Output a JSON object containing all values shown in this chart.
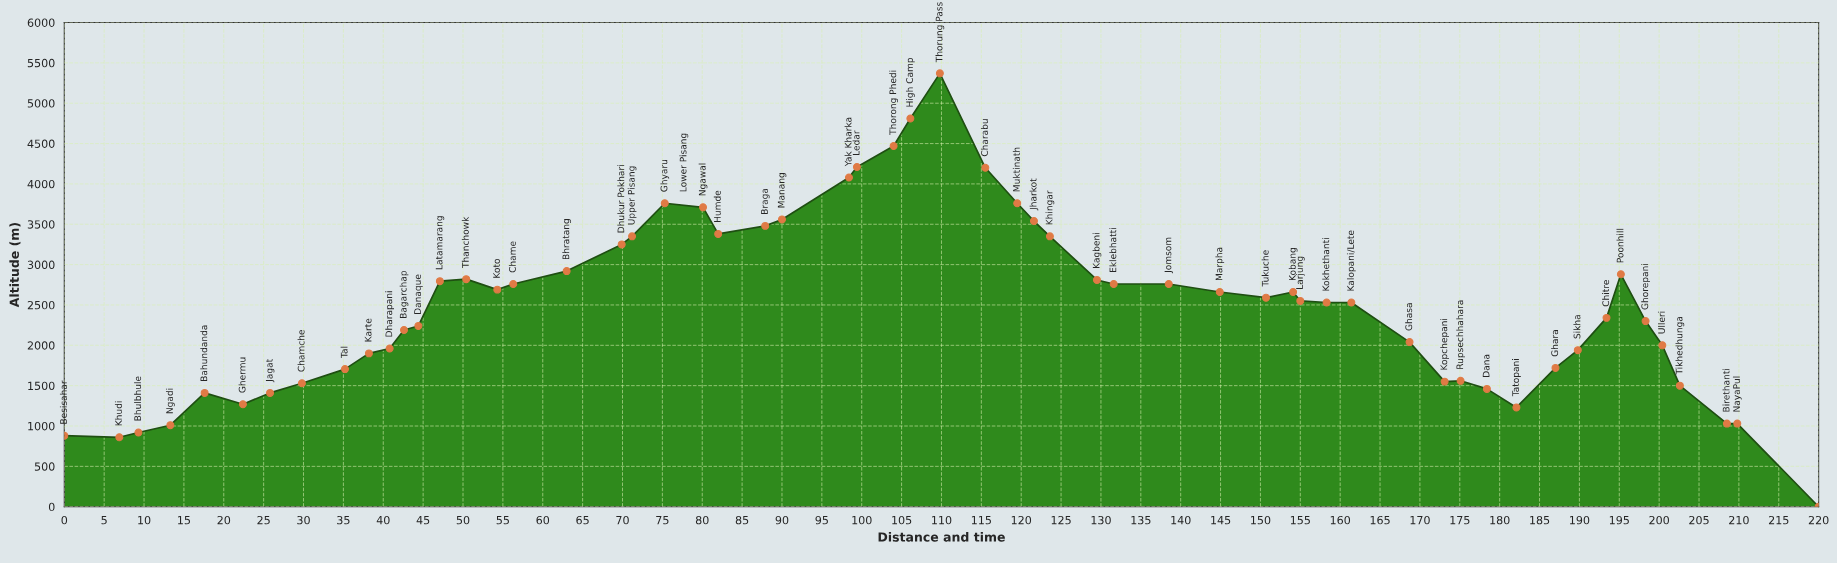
{
  "chart_data": {
    "type": "area",
    "xlabel": "Distance and time",
    "ylabel": "Altitude (m)",
    "x": [
      0,
      6.9,
      9.3,
      13.3,
      17.6,
      22.4,
      25.8,
      29.8,
      35.2,
      38.2,
      40.8,
      42.6,
      44.4,
      47.1,
      50.4,
      54.3,
      56.3,
      63,
      69.9,
      71.2,
      75.3,
      80.1,
      82,
      87.9,
      90,
      98.4,
      99.4,
      104,
      106.1,
      109.8,
      115.5,
      119.5,
      121.6,
      123.6,
      129.5,
      131.6,
      138.5,
      144.9,
      150.7,
      154.1,
      155,
      158.3,
      161.4,
      168.7,
      173.1,
      175.1,
      178.4,
      182.1,
      187,
      189.8,
      193.4,
      195.2,
      198.3,
      200.4,
      202.6,
      208.5,
      209.8,
      220
    ],
    "series": [
      {
        "color": "#2f8a1c",
        "values": [
          880,
          860,
          920,
          1010,
          1410,
          1270,
          1410,
          1530,
          1705,
          1900,
          1960,
          2190,
          2240,
          2795,
          2820,
          2690,
          2760,
          2920,
          3250,
          3350,
          3760,
          3710,
          3380,
          3480,
          3560,
          4080,
          4210,
          4470,
          4810,
          5370,
          4200,
          3760,
          3540,
          3350,
          2810,
          2760,
          2760,
          2660,
          2590,
          2660,
          2550,
          2530,
          2530,
          2040,
          1550,
          1560,
          1460,
          1230,
          1720,
          1940,
          2340,
          2880,
          2300,
          2000,
          1500,
          1030,
          1030,
          0
        ]
      }
    ],
    "marker": "circle",
    "xlim": [
      0,
      220
    ],
    "xticks": [
      0,
      5,
      10,
      15,
      20,
      25,
      30,
      35,
      40,
      45,
      50,
      55,
      60,
      65,
      70,
      75,
      80,
      85,
      90,
      95,
      100,
      105,
      110,
      115,
      120,
      125,
      130,
      135,
      140,
      145,
      150,
      155,
      160,
      165,
      170,
      175,
      180,
      185,
      190,
      195,
      200,
      205,
      210,
      215,
      220
    ],
    "ylim": [
      0,
      6000
    ],
    "yticks": [
      0,
      500,
      1000,
      1500,
      2000,
      2500,
      3000,
      3500,
      4000,
      4500,
      5000,
      5500,
      6000
    ],
    "grid": true,
    "annotations": [
      {
        "text": "Besisahar",
        "x": 0,
        "y": 880
      },
      {
        "text": "Khudi",
        "x": 6.9,
        "y": 860
      },
      {
        "text": "Bhulbhule",
        "x": 9.3,
        "y": 920
      },
      {
        "text": "Ngadi",
        "x": 13.3,
        "y": 1010
      },
      {
        "text": "Bahundanda",
        "x": 17.6,
        "y": 1410
      },
      {
        "text": "Ghermu",
        "x": 22.4,
        "y": 1270
      },
      {
        "text": "Jagat",
        "x": 25.8,
        "y": 1410
      },
      {
        "text": "Chamche",
        "x": 29.8,
        "y": 1530
      },
      {
        "text": "Tal",
        "x": 35.2,
        "y": 1705
      },
      {
        "text": "Karte",
        "x": 38.2,
        "y": 1900
      },
      {
        "text": "Dharapani",
        "x": 40.8,
        "y": 1960
      },
      {
        "text": "Bagarchap",
        "x": 42.6,
        "y": 2190
      },
      {
        "text": "Danaque",
        "x": 44.4,
        "y": 2240
      },
      {
        "text": "Latamarang",
        "x": 47.1,
        "y": 2795
      },
      {
        "text": "Thanchowk",
        "x": 50.4,
        "y": 2820
      },
      {
        "text": "Koto",
        "x": 54.3,
        "y": 2690
      },
      {
        "text": "Chame",
        "x": 56.3,
        "y": 2760
      },
      {
        "text": "Bhratang",
        "x": 63,
        "y": 2920
      },
      {
        "text": "Dhukur Pokhari",
        "x": 69.9,
        "y": 3250
      },
      {
        "text": "Upper Pisang",
        "x": 71.2,
        "y": 3350
      },
      {
        "text": "Ghyaru",
        "x": 75.3,
        "y": 3760
      },
      {
        "text": "Lower Pisang",
        "x": 77.7,
        "y": 3760
      },
      {
        "text": "Ngawal",
        "x": 80.1,
        "y": 3710
      },
      {
        "text": "Humde",
        "x": 82,
        "y": 3380
      },
      {
        "text": "Braga",
        "x": 87.9,
        "y": 3480
      },
      {
        "text": "Manang",
        "x": 90,
        "y": 3560
      },
      {
        "text": "Yak Kharka",
        "x": 98.4,
        "y": 4080
      },
      {
        "text": "Ledar",
        "x": 99.4,
        "y": 4210
      },
      {
        "text": "Thorong Phedi",
        "x": 104,
        "y": 4470
      },
      {
        "text": "High Camp",
        "x": 106.1,
        "y": 4810
      },
      {
        "text": "Thorung Pass",
        "x": 109.8,
        "y": 5370
      },
      {
        "text": "Charabu",
        "x": 115.5,
        "y": 4200
      },
      {
        "text": "Muktinath",
        "x": 119.5,
        "y": 3760
      },
      {
        "text": "Jharkot",
        "x": 121.6,
        "y": 3540
      },
      {
        "text": "Khingar",
        "x": 123.6,
        "y": 3350
      },
      {
        "text": "Kagbeni",
        "x": 129.5,
        "y": 2810
      },
      {
        "text": "Eklebhatti",
        "x": 131.6,
        "y": 2760
      },
      {
        "text": "Jomsom",
        "x": 138.5,
        "y": 2760
      },
      {
        "text": "Marpha",
        "x": 144.9,
        "y": 2660
      },
      {
        "text": "Tukuche",
        "x": 150.7,
        "y": 2590
      },
      {
        "text": "Kobang",
        "x": 154.1,
        "y": 2660
      },
      {
        "text": "Larjung",
        "x": 155,
        "y": 2550
      },
      {
        "text": "Kokhethanti",
        "x": 158.3,
        "y": 2530
      },
      {
        "text": "Kalopani/Lete",
        "x": 161.4,
        "y": 2530
      },
      {
        "text": "Ghasa",
        "x": 168.7,
        "y": 2040
      },
      {
        "text": "Kopchepani",
        "x": 173.1,
        "y": 1550
      },
      {
        "text": "Rupsechhahara",
        "x": 175.1,
        "y": 1560
      },
      {
        "text": "Dana",
        "x": 178.4,
        "y": 1460
      },
      {
        "text": "Tatopani",
        "x": 182.1,
        "y": 1230
      },
      {
        "text": "Ghara",
        "x": 187,
        "y": 1720
      },
      {
        "text": "Sikha",
        "x": 189.8,
        "y": 1940
      },
      {
        "text": "Chitre",
        "x": 193.4,
        "y": 2340
      },
      {
        "text": "Poonhill",
        "x": 195.2,
        "y": 2880
      },
      {
        "text": "Ghorepani",
        "x": 198.3,
        "y": 2300
      },
      {
        "text": "Ulleri",
        "x": 200.4,
        "y": 2000
      },
      {
        "text": "Tikhedhunga",
        "x": 202.6,
        "y": 1500
      },
      {
        "text": "Birethanti",
        "x": 208.5,
        "y": 1030
      },
      {
        "text": "NayaPul",
        "x": 209.8,
        "y": 1030
      }
    ]
  }
}
